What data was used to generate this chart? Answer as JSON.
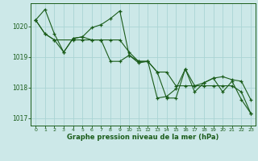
{
  "title": "Graphe pression niveau de la mer (hPa)",
  "bg_color": "#cce8e8",
  "grid_color": "#aad4d4",
  "line_color": "#1a5c1a",
  "ylim": [
    1016.75,
    1020.75
  ],
  "xlim": [
    -0.5,
    23.5
  ],
  "yticks": [
    1017,
    1018,
    1019,
    1020
  ],
  "xticks": [
    0,
    1,
    2,
    3,
    4,
    5,
    6,
    7,
    8,
    9,
    10,
    11,
    12,
    13,
    14,
    15,
    16,
    17,
    18,
    19,
    20,
    21,
    22,
    23
  ],
  "series1": {
    "x": [
      0,
      1,
      2,
      3,
      4,
      5,
      6,
      7,
      8,
      9,
      10,
      11,
      12,
      13,
      14,
      15,
      16,
      17,
      18,
      19,
      20,
      21,
      22,
      23
    ],
    "y": [
      1020.2,
      1020.55,
      1019.75,
      1019.15,
      1019.6,
      1019.65,
      1019.95,
      1020.05,
      1020.25,
      1020.5,
      1019.05,
      1018.8,
      1018.85,
      1017.65,
      1017.7,
      1017.95,
      1018.6,
      1018.05,
      1018.15,
      1018.3,
      1018.35,
      1018.25,
      1018.2,
      1017.6
    ]
  },
  "series2": {
    "x": [
      0,
      1,
      2,
      3,
      4,
      5,
      6,
      7,
      8,
      9,
      10,
      11,
      12,
      13,
      14,
      15,
      16,
      17,
      18,
      19,
      20,
      21,
      22,
      23
    ],
    "y": [
      1020.2,
      1019.75,
      1019.55,
      1019.15,
      1019.6,
      1019.65,
      1019.55,
      1019.55,
      1018.85,
      1018.85,
      1019.05,
      1018.85,
      1018.85,
      1018.5,
      1017.65,
      1017.65,
      1018.6,
      1017.85,
      1018.15,
      1018.3,
      1017.85,
      1018.2,
      1017.6,
      1017.15
    ]
  },
  "series3": {
    "x": [
      0,
      1,
      2,
      4,
      5,
      6,
      7,
      8,
      9,
      10,
      11,
      12,
      13,
      14,
      15,
      16,
      17,
      18,
      19,
      20,
      21,
      22,
      23
    ],
    "y": [
      1020.2,
      1019.75,
      1019.55,
      1019.55,
      1019.55,
      1019.55,
      1019.55,
      1019.55,
      1019.55,
      1019.15,
      1018.85,
      1018.85,
      1018.5,
      1018.5,
      1018.05,
      1018.05,
      1018.05,
      1018.05,
      1018.05,
      1018.05,
      1018.05,
      1017.85,
      1017.15
    ]
  }
}
